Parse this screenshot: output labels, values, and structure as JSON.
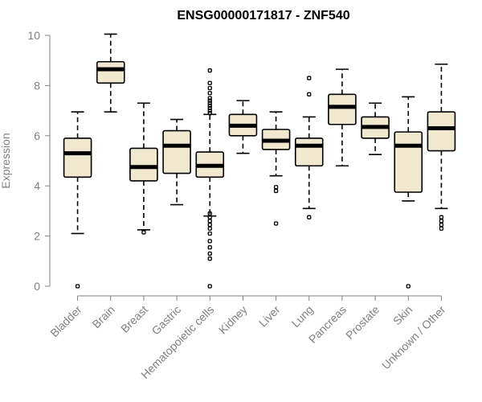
{
  "chart_data": {
    "type": "boxplot",
    "title": "ENSG00000171817 - ZNF540",
    "xlabel": "",
    "ylabel": "Expression",
    "ylim": [
      0,
      10
    ],
    "yticks": [
      0,
      2,
      4,
      6,
      8,
      10
    ],
    "categories": [
      "Bladder",
      "Brain",
      "Breast",
      "Gastric",
      "Hematopoietic cells",
      "Kidney",
      "Liver",
      "Lung",
      "Pancreas",
      "Prostate",
      "Skin",
      "Unknown / Other"
    ],
    "boxes": [
      {
        "name": "Bladder",
        "whisker_low": 2.1,
        "q1": 4.35,
        "median": 5.3,
        "q3": 5.9,
        "whisker_high": 6.95,
        "outliers": [
          0.0
        ]
      },
      {
        "name": "Brain",
        "whisker_low": 6.95,
        "q1": 8.1,
        "median": 8.65,
        "q3": 8.95,
        "whisker_high": 10.05,
        "outliers": []
      },
      {
        "name": "Breast",
        "whisker_low": 2.25,
        "q1": 4.2,
        "median": 4.75,
        "q3": 5.5,
        "whisker_high": 7.3,
        "outliers": [
          2.15
        ]
      },
      {
        "name": "Gastric",
        "whisker_low": 3.25,
        "q1": 4.5,
        "median": 5.6,
        "q3": 6.2,
        "whisker_high": 6.65,
        "outliers": []
      },
      {
        "name": "Hematopoietic cells",
        "whisker_low": 2.8,
        "q1": 4.35,
        "median": 4.8,
        "q3": 5.35,
        "whisker_high": 6.85,
        "outliers": [
          8.6,
          8.1,
          7.9,
          7.7,
          7.5,
          7.4,
          7.3,
          7.2,
          7.1,
          7.0,
          6.9,
          2.9,
          2.75,
          2.6,
          2.45,
          2.3,
          2.1,
          1.8,
          1.55,
          1.3,
          1.1,
          0.0
        ]
      },
      {
        "name": "Kidney",
        "whisker_low": 5.3,
        "q1": 6.0,
        "median": 6.4,
        "q3": 6.85,
        "whisker_high": 7.4,
        "outliers": []
      },
      {
        "name": "Liver",
        "whisker_low": 4.4,
        "q1": 5.45,
        "median": 5.8,
        "q3": 6.25,
        "whisker_high": 6.95,
        "outliers": [
          3.95,
          3.8,
          2.5
        ]
      },
      {
        "name": "Lung",
        "whisker_low": 3.1,
        "q1": 4.8,
        "median": 5.6,
        "q3": 5.9,
        "whisker_high": 6.75,
        "outliers": [
          8.3,
          7.65,
          2.75
        ]
      },
      {
        "name": "Pancreas",
        "whisker_low": 4.8,
        "q1": 6.45,
        "median": 7.15,
        "q3": 7.65,
        "whisker_high": 8.65,
        "outliers": []
      },
      {
        "name": "Prostate",
        "whisker_low": 5.25,
        "q1": 5.9,
        "median": 6.35,
        "q3": 6.75,
        "whisker_high": 7.3,
        "outliers": []
      },
      {
        "name": "Skin",
        "whisker_low": 3.4,
        "q1": 3.75,
        "median": 5.6,
        "q3": 6.15,
        "whisker_high": 7.55,
        "outliers": [
          0.0
        ]
      },
      {
        "name": "Unknown / Other",
        "whisker_low": 3.1,
        "q1": 5.4,
        "median": 6.3,
        "q3": 6.95,
        "whisker_high": 8.85,
        "outliers": [
          2.75,
          2.6,
          2.45,
          2.3
        ]
      }
    ],
    "colors": {
      "box_fill": "#f0e9d0",
      "box_stroke": "#000000",
      "axis": "#808080"
    }
  }
}
